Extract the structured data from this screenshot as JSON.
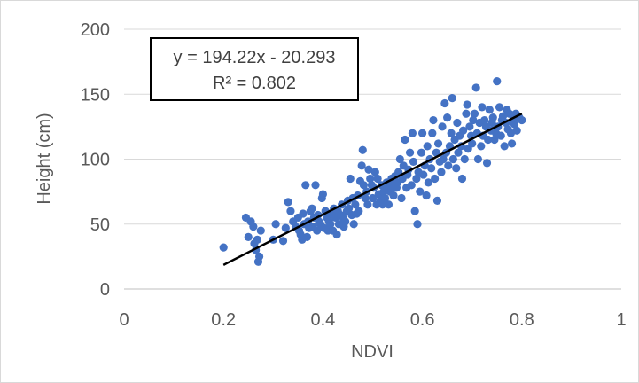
{
  "chart_data": {
    "type": "scatter",
    "xlabel": "NDVI",
    "ylabel": "Height (cm)",
    "xlim": [
      0,
      1
    ],
    "ylim": [
      0,
      200
    ],
    "x_ticks": [
      0,
      0.2,
      0.4,
      0.6,
      0.8,
      1
    ],
    "y_ticks": [
      0,
      50,
      100,
      150,
      200
    ],
    "x_tick_labels": [
      "0",
      "0.2",
      "0.4",
      "0.6",
      "0.8",
      "1"
    ],
    "y_tick_labels": [
      "0",
      "50",
      "100",
      "150",
      "200"
    ],
    "grid": "horizontal",
    "marker_color": "#4472c4",
    "trendline_color": "#000000",
    "trendline": {
      "slope": 194.22,
      "intercept": -20.293,
      "x_range": [
        0.2,
        0.8
      ],
      "equation_label": "y = 194.22x - 20.293",
      "r2_label": "R² = 0.802"
    },
    "points": [
      [
        0.2,
        32
      ],
      [
        0.245,
        55
      ],
      [
        0.25,
        40
      ],
      [
        0.255,
        52
      ],
      [
        0.26,
        48
      ],
      [
        0.262,
        35
      ],
      [
        0.265,
        30
      ],
      [
        0.268,
        38
      ],
      [
        0.27,
        21
      ],
      [
        0.272,
        25
      ],
      [
        0.275,
        45
      ],
      [
        0.3,
        38
      ],
      [
        0.305,
        50
      ],
      [
        0.32,
        37
      ],
      [
        0.325,
        47
      ],
      [
        0.33,
        67
      ],
      [
        0.335,
        60
      ],
      [
        0.34,
        52
      ],
      [
        0.345,
        48
      ],
      [
        0.35,
        55
      ],
      [
        0.352,
        45
      ],
      [
        0.355,
        42
      ],
      [
        0.358,
        38
      ],
      [
        0.36,
        58
      ],
      [
        0.362,
        50
      ],
      [
        0.365,
        80
      ],
      [
        0.368,
        40
      ],
      [
        0.37,
        52
      ],
      [
        0.372,
        47
      ],
      [
        0.375,
        60
      ],
      [
        0.378,
        62
      ],
      [
        0.38,
        48
      ],
      [
        0.382,
        55
      ],
      [
        0.385,
        80
      ],
      [
        0.388,
        45
      ],
      [
        0.39,
        57
      ],
      [
        0.392,
        52
      ],
      [
        0.395,
        50
      ],
      [
        0.398,
        70
      ],
      [
        0.4,
        73
      ],
      [
        0.402,
        47
      ],
      [
        0.405,
        60
      ],
      [
        0.408,
        55
      ],
      [
        0.41,
        45
      ],
      [
        0.412,
        52
      ],
      [
        0.415,
        50
      ],
      [
        0.418,
        58
      ],
      [
        0.42,
        45
      ],
      [
        0.422,
        62
      ],
      [
        0.425,
        55
      ],
      [
        0.428,
        42
      ],
      [
        0.43,
        60
      ],
      [
        0.432,
        50
      ],
      [
        0.435,
        57
      ],
      [
        0.438,
        65
      ],
      [
        0.44,
        55
      ],
      [
        0.442,
        48
      ],
      [
        0.445,
        52
      ],
      [
        0.448,
        60
      ],
      [
        0.45,
        68
      ],
      [
        0.452,
        62
      ],
      [
        0.455,
        85
      ],
      [
        0.458,
        57
      ],
      [
        0.46,
        70
      ],
      [
        0.462,
        50
      ],
      [
        0.465,
        65
      ],
      [
        0.468,
        58
      ],
      [
        0.47,
        72
      ],
      [
        0.472,
        60
      ],
      [
        0.475,
        83
      ],
      [
        0.478,
        95
      ],
      [
        0.48,
        107
      ],
      [
        0.482,
        80
      ],
      [
        0.485,
        70
      ],
      [
        0.488,
        75
      ],
      [
        0.49,
        65
      ],
      [
        0.492,
        92
      ],
      [
        0.495,
        85
      ],
      [
        0.498,
        80
      ],
      [
        0.5,
        70
      ],
      [
        0.502,
        78
      ],
      [
        0.505,
        90
      ],
      [
        0.508,
        65
      ],
      [
        0.51,
        85
      ],
      [
        0.512,
        73
      ],
      [
        0.515,
        68
      ],
      [
        0.518,
        80
      ],
      [
        0.52,
        65
      ],
      [
        0.522,
        75
      ],
      [
        0.525,
        70
      ],
      [
        0.528,
        82
      ],
      [
        0.53,
        78
      ],
      [
        0.532,
        65
      ],
      [
        0.535,
        75
      ],
      [
        0.538,
        85
      ],
      [
        0.54,
        80
      ],
      [
        0.542,
        72
      ],
      [
        0.545,
        87
      ],
      [
        0.548,
        78
      ],
      [
        0.55,
        82
      ],
      [
        0.552,
        90
      ],
      [
        0.555,
        100
      ],
      [
        0.558,
        70
      ],
      [
        0.56,
        85
      ],
      [
        0.562,
        95
      ],
      [
        0.565,
        115
      ],
      [
        0.568,
        78
      ],
      [
        0.57,
        88
      ],
      [
        0.572,
        92
      ],
      [
        0.575,
        105
      ],
      [
        0.578,
        80
      ],
      [
        0.58,
        120
      ],
      [
        0.582,
        98
      ],
      [
        0.585,
        60
      ],
      [
        0.588,
        85
      ],
      [
        0.59,
        50
      ],
      [
        0.592,
        90
      ],
      [
        0.595,
        75
      ],
      [
        0.598,
        105
      ],
      [
        0.6,
        120
      ],
      [
        0.602,
        88
      ],
      [
        0.605,
        95
      ],
      [
        0.608,
        72
      ],
      [
        0.61,
        110
      ],
      [
        0.612,
        82
      ],
      [
        0.615,
        100
      ],
      [
        0.618,
        93
      ],
      [
        0.62,
        120
      ],
      [
        0.622,
        130
      ],
      [
        0.625,
        85
      ],
      [
        0.628,
        105
      ],
      [
        0.63,
        68
      ],
      [
        0.632,
        112
      ],
      [
        0.635,
        98
      ],
      [
        0.638,
        90
      ],
      [
        0.64,
        125
      ],
      [
        0.642,
        100
      ],
      [
        0.645,
        143
      ],
      [
        0.648,
        105
      ],
      [
        0.65,
        132
      ],
      [
        0.652,
        95
      ],
      [
        0.655,
        110
      ],
      [
        0.658,
        120
      ],
      [
        0.66,
        147
      ],
      [
        0.662,
        100
      ],
      [
        0.665,
        115
      ],
      [
        0.668,
        93
      ],
      [
        0.67,
        128
      ],
      [
        0.672,
        105
      ],
      [
        0.675,
        118
      ],
      [
        0.678,
        110
      ],
      [
        0.68,
        85
      ],
      [
        0.682,
        122
      ],
      [
        0.685,
        100
      ],
      [
        0.688,
        135
      ],
      [
        0.69,
        142
      ],
      [
        0.692,
        108
      ],
      [
        0.695,
        125
      ],
      [
        0.698,
        118
      ],
      [
        0.7,
        112
      ],
      [
        0.702,
        130
      ],
      [
        0.705,
        135
      ],
      [
        0.708,
        155
      ],
      [
        0.71,
        120
      ],
      [
        0.712,
        100
      ],
      [
        0.715,
        128
      ],
      [
        0.718,
        110
      ],
      [
        0.72,
        140
      ],
      [
        0.722,
        118
      ],
      [
        0.725,
        130
      ],
      [
        0.728,
        125
      ],
      [
        0.73,
        97
      ],
      [
        0.732,
        115
      ],
      [
        0.735,
        138
      ],
      [
        0.738,
        122
      ],
      [
        0.74,
        128
      ],
      [
        0.742,
        132
      ],
      [
        0.745,
        115
      ],
      [
        0.748,
        120
      ],
      [
        0.75,
        160
      ],
      [
        0.752,
        125
      ],
      [
        0.755,
        140
      ],
      [
        0.758,
        118
      ],
      [
        0.76,
        130
      ],
      [
        0.762,
        133
      ],
      [
        0.765,
        110
      ],
      [
        0.768,
        128
      ],
      [
        0.77,
        138
      ],
      [
        0.772,
        123
      ],
      [
        0.775,
        135
      ],
      [
        0.778,
        120
      ],
      [
        0.78,
        112
      ],
      [
        0.782,
        130
      ],
      [
        0.785,
        127
      ],
      [
        0.788,
        135
      ],
      [
        0.79,
        122
      ],
      [
        0.795,
        132
      ],
      [
        0.8,
        130
      ]
    ]
  }
}
